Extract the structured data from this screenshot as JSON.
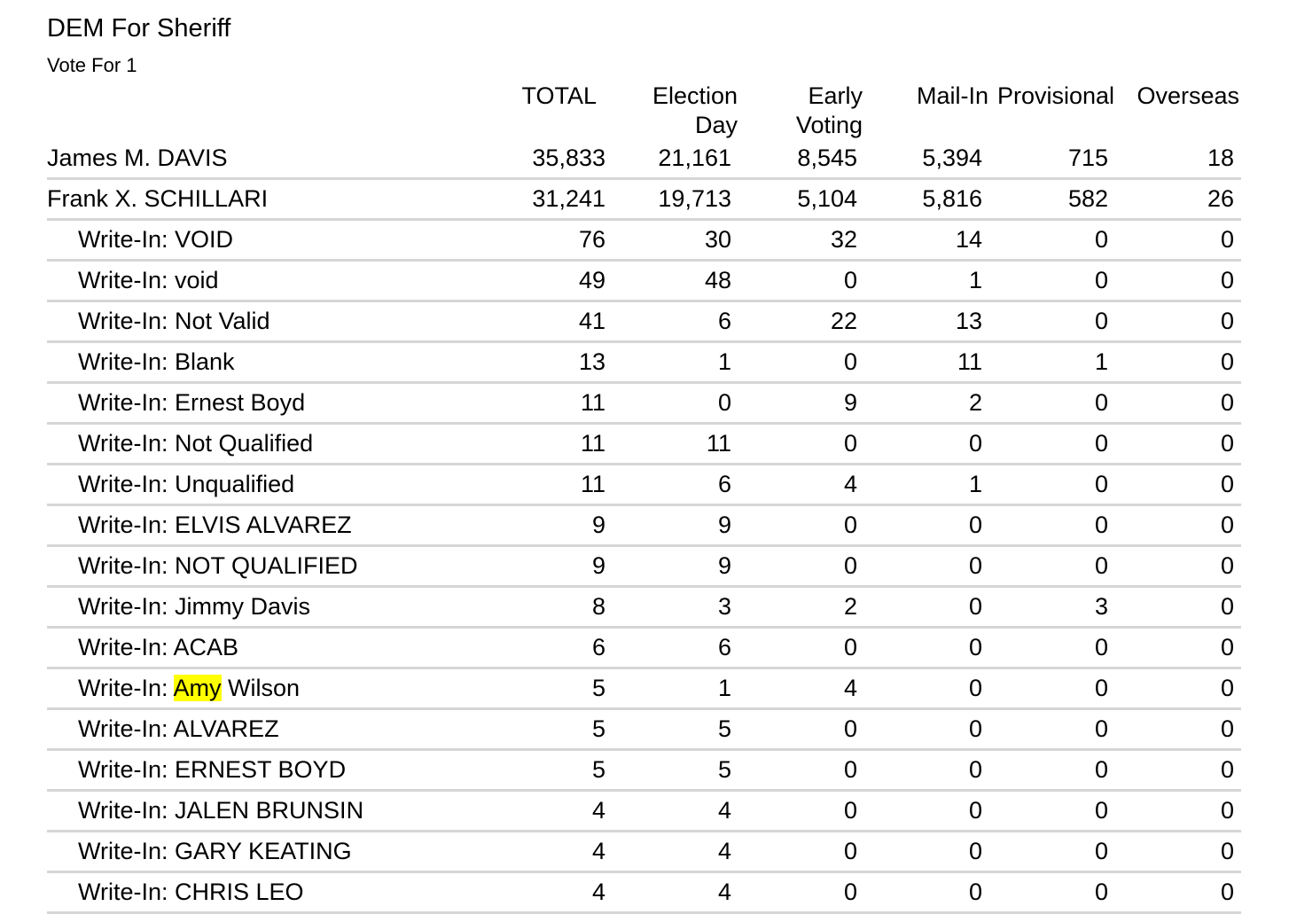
{
  "contest": {
    "title": "DEM For Sheriff",
    "vote_for": "Vote For 1"
  },
  "columns": [
    {
      "label": "TOTAL"
    },
    {
      "label": "Election\nDay"
    },
    {
      "label": "Early\nVoting"
    },
    {
      "label": "Mail-In"
    },
    {
      "label": "Provisional"
    },
    {
      "label": "Overseas"
    }
  ],
  "rows": [
    {
      "prefix": "",
      "name": "James M. DAVIS",
      "highlight": "",
      "rest": "",
      "values": [
        "35,833",
        "21,161",
        "8,545",
        "5,394",
        "715",
        "18"
      ],
      "indent": false
    },
    {
      "prefix": "",
      "name": "Frank X. SCHILLARI",
      "highlight": "",
      "rest": "",
      "values": [
        "31,241",
        "19,713",
        "5,104",
        "5,816",
        "582",
        "26"
      ],
      "indent": false
    },
    {
      "prefix": "",
      "name": "Write-In: VOID",
      "highlight": "",
      "rest": "",
      "values": [
        "76",
        "30",
        "32",
        "14",
        "0",
        "0"
      ],
      "indent": true
    },
    {
      "prefix": "",
      "name": "Write-In: void",
      "highlight": "",
      "rest": "",
      "values": [
        "49",
        "48",
        "0",
        "1",
        "0",
        "0"
      ],
      "indent": true
    },
    {
      "prefix": "",
      "name": "Write-In: Not Valid",
      "highlight": "",
      "rest": "",
      "values": [
        "41",
        "6",
        "22",
        "13",
        "0",
        "0"
      ],
      "indent": true
    },
    {
      "prefix": "",
      "name": "Write-In: Blank",
      "highlight": "",
      "rest": "",
      "values": [
        "13",
        "1",
        "0",
        "11",
        "1",
        "0"
      ],
      "indent": true
    },
    {
      "prefix": "",
      "name": "Write-In: Ernest Boyd",
      "highlight": "",
      "rest": "",
      "values": [
        "11",
        "0",
        "9",
        "2",
        "0",
        "0"
      ],
      "indent": true
    },
    {
      "prefix": "",
      "name": "Write-In: Not Qualified",
      "highlight": "",
      "rest": "",
      "values": [
        "11",
        "11",
        "0",
        "0",
        "0",
        "0"
      ],
      "indent": true
    },
    {
      "prefix": "",
      "name": "Write-In: Unqualified",
      "highlight": "",
      "rest": "",
      "values": [
        "11",
        "6",
        "4",
        "1",
        "0",
        "0"
      ],
      "indent": true
    },
    {
      "prefix": "",
      "name": "Write-In: ELVIS ALVAREZ",
      "highlight": "",
      "rest": "",
      "values": [
        "9",
        "9",
        "0",
        "0",
        "0",
        "0"
      ],
      "indent": true
    },
    {
      "prefix": "",
      "name": "Write-In: NOT QUALIFIED",
      "highlight": "",
      "rest": "",
      "values": [
        "9",
        "9",
        "0",
        "0",
        "0",
        "0"
      ],
      "indent": true
    },
    {
      "prefix": "",
      "name": "Write-In: Jimmy Davis",
      "highlight": "",
      "rest": "",
      "values": [
        "8",
        "3",
        "2",
        "0",
        "3",
        "0"
      ],
      "indent": true
    },
    {
      "prefix": "",
      "name": "Write-In: ACAB",
      "highlight": "",
      "rest": "",
      "values": [
        "6",
        "6",
        "0",
        "0",
        "0",
        "0"
      ],
      "indent": true
    },
    {
      "prefix": "Write-In: ",
      "name": "",
      "highlight": "Amy",
      "rest": " Wilson",
      "values": [
        "5",
        "1",
        "4",
        "0",
        "0",
        "0"
      ],
      "indent": true
    },
    {
      "prefix": "",
      "name": "Write-In: ALVAREZ",
      "highlight": "",
      "rest": "",
      "values": [
        "5",
        "5",
        "0",
        "0",
        "0",
        "0"
      ],
      "indent": true
    },
    {
      "prefix": "",
      "name": "Write-In: ERNEST BOYD",
      "highlight": "",
      "rest": "",
      "values": [
        "5",
        "5",
        "0",
        "0",
        "0",
        "0"
      ],
      "indent": true
    },
    {
      "prefix": "",
      "name": "Write-In: JALEN BRUNSIN",
      "highlight": "",
      "rest": "",
      "values": [
        "4",
        "4",
        "0",
        "0",
        "0",
        "0"
      ],
      "indent": true
    },
    {
      "prefix": "",
      "name": "Write-In: GARY KEATING",
      "highlight": "",
      "rest": "",
      "values": [
        "4",
        "4",
        "0",
        "0",
        "0",
        "0"
      ],
      "indent": true
    },
    {
      "prefix": "",
      "name": "Write-In: CHRIS LEO",
      "highlight": "",
      "rest": "",
      "values": [
        "4",
        "4",
        "0",
        "0",
        "0",
        "0"
      ],
      "indent": true
    }
  ],
  "colors": {
    "highlight": "#ffff00",
    "row_rule": "#d6d6d6",
    "text": "#000000"
  }
}
